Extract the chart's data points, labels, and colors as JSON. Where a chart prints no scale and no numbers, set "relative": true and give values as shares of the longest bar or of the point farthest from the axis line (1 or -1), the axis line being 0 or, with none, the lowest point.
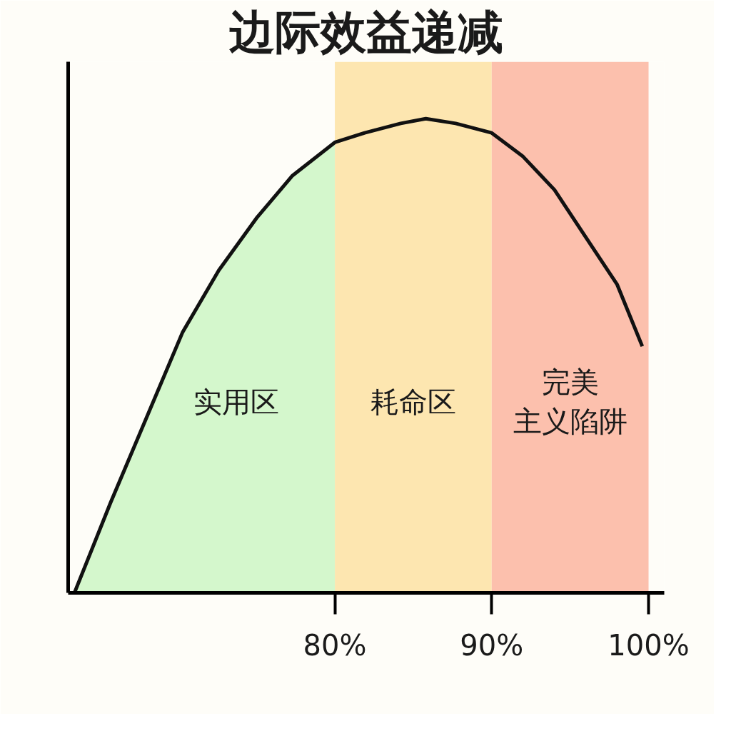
{
  "chart_data": {
    "type": "line",
    "title": "边际效益递减",
    "relative": true,
    "xlim": [
      63,
      101
    ],
    "xticks": [
      {
        "value": 80,
        "label": "80%"
      },
      {
        "value": 90,
        "label": "90%"
      },
      {
        "value": 100,
        "label": "100%"
      }
    ],
    "tick_labels": "x",
    "grid": false,
    "line_style": "solid",
    "marker": "none",
    "x": [
      63.4,
      65.7,
      68,
      70.3,
      72.6,
      75,
      77.3,
      80,
      81.9,
      84.2,
      85.8,
      87.7,
      90,
      92,
      94,
      96,
      98,
      99.6
    ],
    "series": [
      {
        "type": "area",
        "color": "#d4f7cc",
        "x": [
          63.4,
          65.7,
          68,
          70.3,
          72.6,
          75,
          77.3,
          80
        ],
        "values": [
          0,
          0.19,
          0.37,
          0.55,
          0.68,
          0.79,
          0.88,
          0.95
        ]
      },
      {
        "color": "#111111",
        "values": [
          0,
          0.19,
          0.37,
          0.55,
          0.68,
          0.79,
          0.88,
          0.95,
          0.97,
          0.99,
          1.0,
          0.99,
          0.97,
          0.92,
          0.85,
          0.75,
          0.65,
          0.52
        ]
      }
    ],
    "bands": [
      {
        "axis": "x",
        "from": 80,
        "to": 90,
        "label": "耗命区",
        "color": "#fde6b0"
      },
      {
        "axis": "x",
        "from": 90,
        "to": 100,
        "label": "完美主义陷阱",
        "color": "#fcc0ad"
      }
    ],
    "annotations": [
      "实用区"
    ]
  }
}
